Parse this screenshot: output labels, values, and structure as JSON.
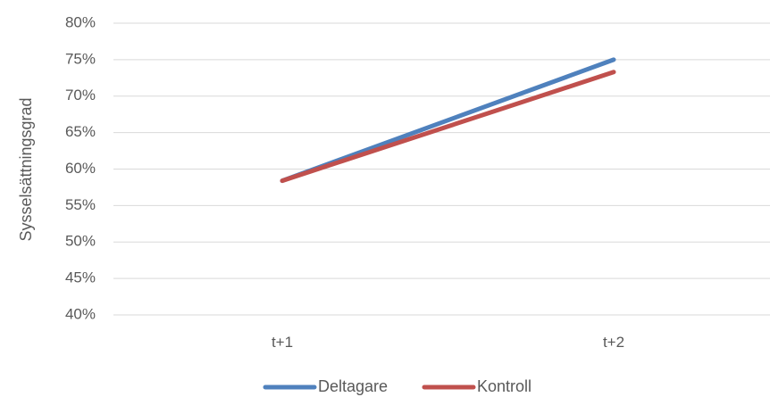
{
  "chart_data": {
    "type": "line",
    "title": "",
    "xlabel": "",
    "ylabel": "Sysselsättningsgrad",
    "categories": [
      "t+1",
      "t+2"
    ],
    "ylim": [
      0.4,
      0.8
    ],
    "yticks": [
      0.4,
      0.45,
      0.5,
      0.55,
      0.6,
      0.65,
      0.7,
      0.75,
      0.8
    ],
    "ytick_labels": [
      "40%",
      "45%",
      "50%",
      "55%",
      "60%",
      "65%",
      "70%",
      "75%",
      "80%"
    ],
    "grid": true,
    "legend_position": "bottom",
    "series": [
      {
        "name": "Deltagare",
        "values": [
          0.584,
          0.75
        ],
        "color": "#4f81bd"
      },
      {
        "name": "Kontroll",
        "values": [
          0.584,
          0.733
        ],
        "color": "#c0504d"
      }
    ]
  }
}
